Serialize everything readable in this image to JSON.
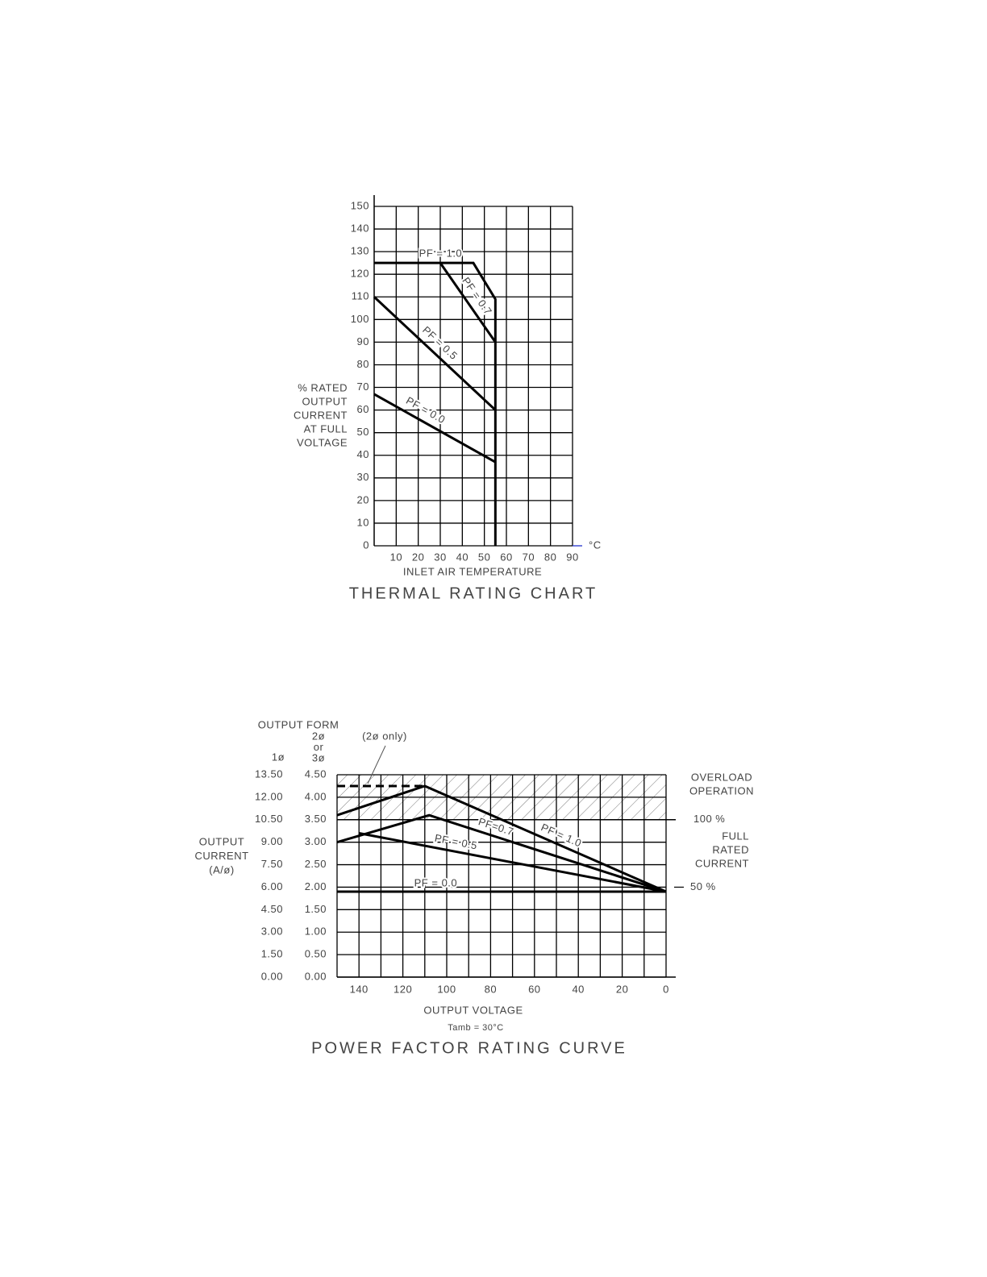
{
  "chart_data": [
    {
      "type": "line",
      "title": "THERMAL RATING CHART",
      "xlabel": "INLET AIR TEMPERATURE",
      "xunit": "°C",
      "ylabel": [
        "% RATED",
        "OUTPUT",
        "CURRENT",
        "AT FULL",
        "VOLTAGE"
      ],
      "xlim": [
        0,
        90
      ],
      "ylim": [
        0,
        150
      ],
      "xticks": [
        10,
        20,
        30,
        40,
        50,
        60,
        70,
        80,
        90
      ],
      "yticks": [
        0,
        10,
        20,
        30,
        40,
        50,
        60,
        70,
        80,
        90,
        100,
        110,
        120,
        130,
        140,
        150
      ],
      "grid": true,
      "series": [
        {
          "name": "PF = 1.0",
          "color": "#000000",
          "x": [
            0,
            45,
            55,
            55
          ],
          "values": [
            125,
            125,
            109,
            0
          ]
        },
        {
          "name": "PF = 0.7",
          "color": "#000000",
          "x": [
            30,
            55
          ],
          "values": [
            125,
            90
          ]
        },
        {
          "name": "PF = 0.5",
          "color": "#000000",
          "x": [
            0,
            55
          ],
          "values": [
            110,
            60
          ]
        },
        {
          "name": "PF = 0.0",
          "color": "#000000",
          "x": [
            0,
            55
          ],
          "values": [
            67,
            37
          ]
        }
      ]
    },
    {
      "type": "line",
      "title": "POWER FACTOR RATING CURVE",
      "xlabel": "OUTPUT VOLTAGE",
      "note": "Tamb = 30°C",
      "ylabel": [
        "OUTPUT",
        "CURRENT",
        "(A/ø)"
      ],
      "output_form": "OUTPUT FORM",
      "y_axis_name": [
        "2ø",
        "or",
        "3ø"
      ],
      "y2_axis_name": "1ø",
      "xlim": [
        150,
        0
      ],
      "ylim": [
        0,
        4.5
      ],
      "y2lim": [
        0,
        13.5
      ],
      "xticks": [
        140,
        120,
        100,
        80,
        60,
        40,
        20,
        0
      ],
      "xgrid": [
        150,
        140,
        130,
        120,
        110,
        100,
        90,
        80,
        70,
        60,
        50,
        40,
        30,
        20,
        10,
        0
      ],
      "yticks": [
        {
          "value": 0,
          "label": "0.00"
        },
        {
          "value": 0.5,
          "label": "0.50"
        },
        {
          "value": 1,
          "label": "1.00"
        },
        {
          "value": 1.5,
          "label": "1.50"
        },
        {
          "value": 2,
          "label": "2.00"
        },
        {
          "value": 2.5,
          "label": "2.50"
        },
        {
          "value": 3,
          "label": "3.00"
        },
        {
          "value": 3.5,
          "label": "3.50"
        },
        {
          "value": 4,
          "label": "4.00"
        },
        {
          "value": 4.5,
          "label": "4.50"
        }
      ],
      "y2ticks": [
        {
          "value": 0,
          "label": "0.00"
        },
        {
          "value": 1.5,
          "label": "1.50"
        },
        {
          "value": 3,
          "label": "3.00"
        },
        {
          "value": 4.5,
          "label": "4.50"
        },
        {
          "value": 6,
          "label": "6.00"
        },
        {
          "value": 7.5,
          "label": "7.50"
        },
        {
          "value": 9,
          "label": "9.00"
        },
        {
          "value": 10.5,
          "label": "10.50"
        },
        {
          "value": 12,
          "label": "12.00"
        },
        {
          "value": 13.5,
          "label": "13.50"
        }
      ],
      "grid": true,
      "overload": {
        "label": [
          "OVERLOAD",
          "OPERATION"
        ],
        "range": [
          3.5,
          4.5
        ]
      },
      "full_rated": [
        "FULL",
        "RATED",
        "CURRENT"
      ],
      "reference_lines": [
        {
          "label": "100 %",
          "value": 3.5
        },
        {
          "label": "50 %",
          "value": 2
        }
      ],
      "series": [
        {
          "name": "PF = 1.0",
          "color": "#000000",
          "x": [
            150,
            110,
            0
          ],
          "values": [
            3.6,
            4.25,
            1.9
          ]
        },
        {
          "name": "PF=0.7",
          "color": "#000000",
          "x": [
            150,
            108,
            0
          ],
          "values": [
            3.0,
            3.6,
            1.9
          ]
        },
        {
          "name": "PF = 0.5",
          "color": "#000000",
          "x": [
            140,
            0
          ],
          "values": [
            3.2,
            1.9
          ]
        },
        {
          "name": "PF = 0.0",
          "color": "#000000",
          "x": [
            150,
            0
          ],
          "values": [
            1.9,
            1.9
          ]
        },
        {
          "name": "(2ø only)",
          "color": "#000000",
          "dashed": true,
          "x": [
            150,
            110
          ],
          "values": [
            4.25,
            4.25
          ]
        }
      ]
    }
  ]
}
